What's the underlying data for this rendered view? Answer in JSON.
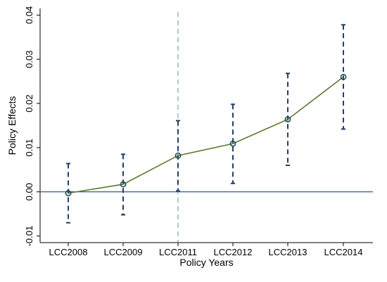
{
  "chart_data": {
    "type": "line",
    "xlabel": "Policy Years",
    "ylabel": "Policy Effects",
    "categories": [
      "LCC2008",
      "LCC2009",
      "LCC2011",
      "LCC2012",
      "LCC2013",
      "LCC2014"
    ],
    "series": [
      {
        "values": [
          -0.0003,
          0.0017,
          0.0082,
          0.0109,
          0.0164,
          0.026
        ],
        "ci_lower": [
          -0.007,
          -0.0052,
          0.0002,
          0.0019,
          0.006,
          0.0142
        ],
        "ci_upper": [
          0.0064,
          0.0085,
          0.0161,
          0.0198,
          0.0268,
          0.0378
        ]
      }
    ],
    "ylim": [
      -0.0115,
      0.0415
    ],
    "yticks": [
      -0.01,
      0.0,
      0.01,
      0.02,
      0.03,
      0.04
    ],
    "ytick_labels": [
      "-0.01",
      "0.00",
      "0.01",
      "0.02",
      "0.03",
      "0.04"
    ],
    "reference_line_y": 0.0,
    "reference_line_category": "LCC2011",
    "grid": false,
    "colors": {
      "line": "#5a7a2e",
      "marker": "#1f4e5f",
      "ci": "#1f3f68",
      "zero_line": "#2d5b86",
      "vline": "#6f9aa6",
      "axis": "#000000"
    }
  }
}
